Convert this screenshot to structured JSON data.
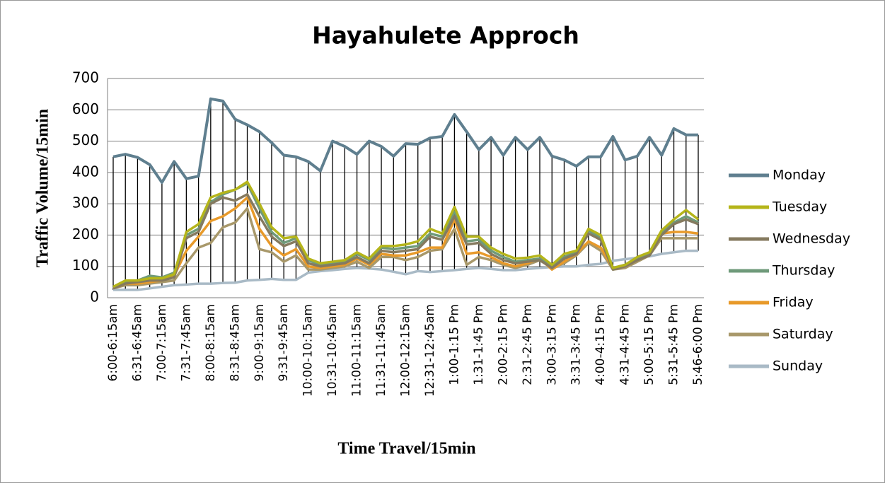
{
  "chart_data": {
    "type": "line",
    "title": "Hayahulete Approch",
    "x_label": "Time Travel/15min",
    "y_label": "Traffic Volume/15min",
    "categories": [
      "6:00-6:15am",
      null,
      "6:31-6:45am",
      null,
      "7:00-7:15am",
      null,
      "7:31-7:45am",
      null,
      "8:00-8:15am",
      null,
      "8:31-8:45am",
      null,
      "9:00-9:15am",
      null,
      "9:31-9:45am",
      null,
      "10:00-10:15am",
      null,
      "10:31-10:45am",
      null,
      "11:00-11:15am",
      null,
      "11:31-11:45am",
      null,
      "12:00-12:15am",
      null,
      "12:31-12:45am",
      null,
      "1:00-1:15 Pm",
      null,
      "1:31-1:45 Pm",
      null,
      "2:00-2:15 Pm",
      null,
      "2:31-2:45 Pm",
      null,
      "3:00-3:15 Pm",
      null,
      "3:31-3:45 Pm",
      null,
      "4:00-4:15 Pm",
      null,
      "4:31-4:45 Pm",
      null,
      "5:00-5:15 Pm",
      null,
      "5:31-5:45 Pm",
      null,
      "5:46-6:00 Pm"
    ],
    "series": [
      {
        "name": "Monday",
        "color": "#5f7f8f",
        "values": [
          450,
          458,
          448,
          425,
          368,
          435,
          380,
          388,
          635,
          628,
          570,
          552,
          530,
          495,
          455,
          450,
          435,
          405,
          500,
          483,
          458,
          500,
          483,
          452,
          492,
          490,
          510,
          515,
          585,
          530,
          473,
          512,
          455,
          512,
          473,
          512,
          452,
          440,
          420,
          450,
          450,
          515,
          440,
          452,
          512,
          455,
          540,
          520,
          520
        ]
      },
      {
        "name": "Tuesday",
        "color": "#b5b51a",
        "values": [
          35,
          55,
          55,
          62,
          62,
          75,
          210,
          235,
          320,
          335,
          345,
          370,
          300,
          225,
          190,
          195,
          125,
          110,
          115,
          120,
          145,
          125,
          165,
          165,
          170,
          180,
          220,
          205,
          290,
          195,
          195,
          160,
          140,
          125,
          128,
          135,
          105,
          140,
          150,
          220,
          200,
          95,
          105,
          130,
          145,
          215,
          250,
          280,
          250
        ]
      },
      {
        "name": "Wednesday",
        "color": "#857a5f",
        "values": [
          30,
          45,
          50,
          55,
          55,
          65,
          190,
          210,
          300,
          320,
          310,
          330,
          260,
          195,
          165,
          180,
          110,
          100,
          105,
          110,
          130,
          110,
          150,
          145,
          150,
          155,
          195,
          185,
          260,
          170,
          175,
          140,
          120,
          110,
          115,
          120,
          95,
          125,
          140,
          205,
          185,
          90,
          100,
          120,
          135,
          200,
          235,
          250,
          235
        ]
      },
      {
        "name": "Thursday",
        "color": "#6f9a7a",
        "values": [
          35,
          50,
          55,
          70,
          65,
          80,
          200,
          220,
          305,
          330,
          345,
          365,
          285,
          210,
          175,
          190,
          120,
          105,
          110,
          115,
          140,
          120,
          160,
          155,
          160,
          165,
          205,
          195,
          275,
          180,
          185,
          150,
          130,
          115,
          120,
          125,
          100,
          130,
          145,
          215,
          190,
          95,
          105,
          125,
          140,
          210,
          240,
          260,
          240
        ]
      },
      {
        "name": "Friday",
        "color": "#e89a2a",
        "values": [
          30,
          45,
          45,
          50,
          55,
          70,
          150,
          195,
          245,
          260,
          285,
          320,
          220,
          165,
          135,
          155,
          100,
          95,
          100,
          105,
          125,
          105,
          140,
          135,
          135,
          145,
          160,
          160,
          250,
          140,
          145,
          130,
          110,
          100,
          110,
          125,
          90,
          115,
          140,
          180,
          160,
          95,
          100,
          120,
          140,
          205,
          210,
          210,
          205
        ]
      },
      {
        "name": "Saturday",
        "color": "#a8986a",
        "values": [
          30,
          40,
          40,
          45,
          50,
          55,
          110,
          160,
          175,
          225,
          240,
          285,
          155,
          145,
          115,
          135,
          90,
          90,
          95,
          100,
          115,
          95,
          130,
          130,
          120,
          130,
          150,
          155,
          220,
          105,
          130,
          120,
          105,
          95,
          105,
          120,
          95,
          110,
          135,
          175,
          150,
          90,
          95,
          115,
          135,
          190,
          190,
          190,
          190
        ]
      },
      {
        "name": "Sunday",
        "color": "#a9bac6",
        "values": [
          25,
          25,
          25,
          30,
          35,
          40,
          42,
          45,
          45,
          47,
          48,
          55,
          57,
          60,
          57,
          57,
          80,
          85,
          88,
          92,
          95,
          93,
          90,
          83,
          75,
          85,
          82,
          85,
          88,
          92,
          95,
          92,
          88,
          88,
          92,
          95,
          98,
          100,
          100,
          105,
          108,
          118,
          123,
          128,
          132,
          140,
          145,
          150,
          150
        ]
      }
    ],
    "ylim": [
      0,
      700
    ],
    "yticks": [
      0,
      100,
      200,
      300,
      400,
      500,
      600,
      700
    ],
    "grid": true,
    "high_low_lines": true,
    "legend": "right"
  }
}
